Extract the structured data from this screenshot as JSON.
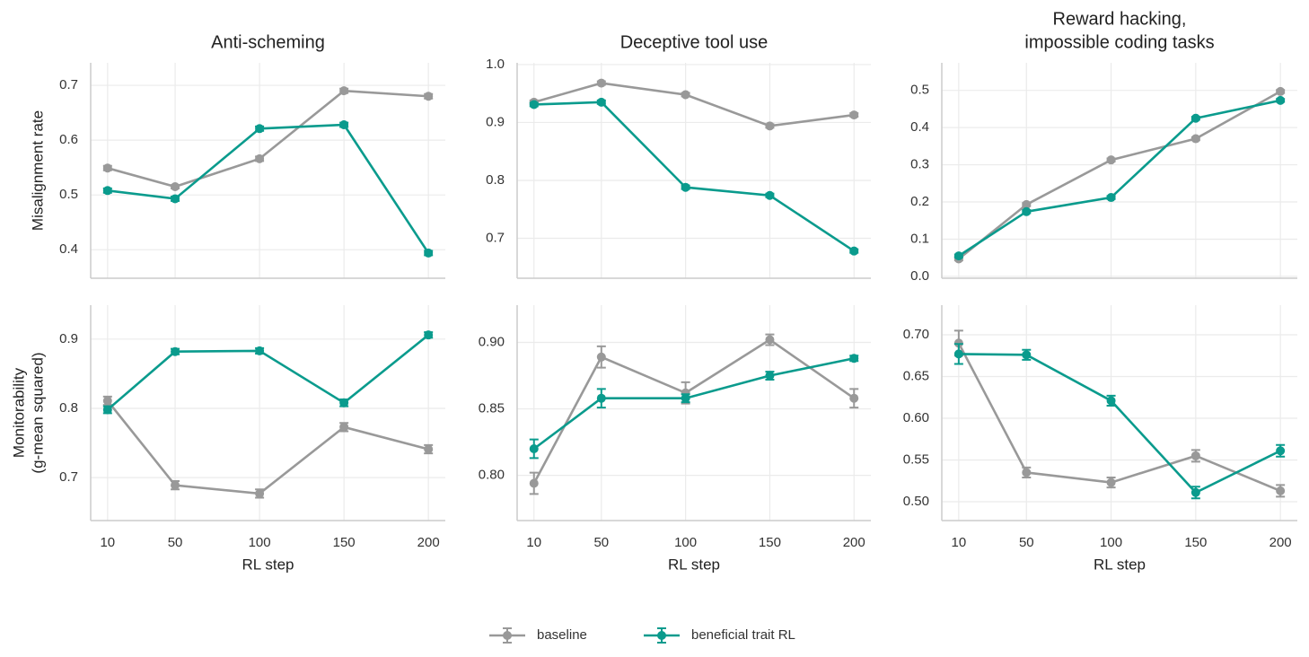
{
  "chart_data": [
    {
      "type": "line",
      "title": "Anti-scheming",
      "ylabel": [
        "Misalignment rate"
      ],
      "legend": "bottom",
      "x": [
        10,
        50,
        100,
        150,
        200
      ],
      "xlim": [
        0,
        210
      ],
      "xticks": [
        10,
        50,
        100,
        150,
        200
      ],
      "ylim": [
        0.348,
        0.741
      ],
      "yticks": [
        0.4,
        0.5,
        0.6,
        0.7
      ],
      "grid": true,
      "series": [
        {
          "name": "baseline",
          "color": "#999999",
          "values": [
            0.549,
            0.515,
            0.566,
            0.69,
            0.68
          ],
          "errors": [
            0.004,
            0.003,
            0.004,
            0.004,
            0.004
          ]
        },
        {
          "name": "beneficial trait RL",
          "color": "#0a9b8d",
          "values": [
            0.508,
            0.493,
            0.621,
            0.628,
            0.394
          ],
          "errors": [
            0.004,
            0.004,
            0.004,
            0.004,
            0.004
          ]
        }
      ]
    },
    {
      "type": "line",
      "title": "Deceptive tool use",
      "x": [
        10,
        50,
        100,
        150,
        200
      ],
      "xlim": [
        0,
        210
      ],
      "xticks": [
        10,
        50,
        100,
        150,
        200
      ],
      "ylim": [
        0.631,
        1.003
      ],
      "yticks": [
        0.7,
        0.8,
        0.9,
        {
          "value": 1,
          "label": "1.0"
        }
      ],
      "grid": true,
      "series": [
        {
          "color": "#999999",
          "values": [
            0.935,
            0.968,
            0.948,
            0.894,
            0.913
          ],
          "errors": [
            0.003,
            0.003,
            0.003,
            0.003,
            0.003
          ]
        },
        {
          "color": "#0a9b8d",
          "values": [
            0.931,
            0.935,
            0.788,
            0.774,
            0.678
          ],
          "errors": [
            0.003,
            0.003,
            0.003,
            0.003,
            0.003
          ]
        }
      ]
    },
    {
      "type": "line",
      "title": [
        "Reward hacking,",
        "impossible coding tasks"
      ],
      "x": [
        10,
        50,
        100,
        150,
        200
      ],
      "xlim": [
        0,
        210
      ],
      "xticks": [
        10,
        50,
        100,
        150,
        200
      ],
      "ylim": [
        -0.005,
        0.574
      ],
      "yticks": [
        {
          "value": 0,
          "label": "0.0"
        },
        0.1,
        0.2,
        0.3,
        0.4,
        0.5
      ],
      "grid": true,
      "series": [
        {
          "color": "#999999",
          "values": [
            0.047,
            0.193,
            0.313,
            0.37,
            0.497
          ],
          "errors": [
            0.004,
            0.004,
            0.004,
            0.004,
            0.004
          ]
        },
        {
          "color": "#0a9b8d",
          "values": [
            0.055,
            0.174,
            0.212,
            0.425,
            0.473
          ],
          "errors": [
            0.004,
            0.004,
            0.004,
            0.004,
            0.004
          ]
        }
      ]
    },
    {
      "type": "line",
      "ylabel": [
        "Monitorability",
        "(g-mean squared)"
      ],
      "xlabel": "RL step",
      "x": [
        10,
        50,
        100,
        150,
        200
      ],
      "xlim": [
        0,
        210
      ],
      "xticks": [
        10,
        50,
        100,
        150,
        200
      ],
      "ylim": [
        0.638,
        0.949
      ],
      "yticks": [
        0.7,
        0.8,
        0.9
      ],
      "grid": true,
      "series": [
        {
          "color": "#999999",
          "values": [
            0.811,
            0.689,
            0.677,
            0.773,
            0.741
          ],
          "errors": [
            0.006,
            0.006,
            0.006,
            0.006,
            0.006
          ]
        },
        {
          "color": "#0a9b8d",
          "values": [
            0.798,
            0.882,
            0.883,
            0.808,
            0.906
          ],
          "errors": [
            0.005,
            0.004,
            0.004,
            0.005,
            0.004
          ]
        }
      ]
    },
    {
      "type": "line",
      "xlabel": "RL step",
      "x": [
        10,
        50,
        100,
        150,
        200
      ],
      "xlim": [
        0,
        210
      ],
      "xticks": [
        10,
        50,
        100,
        150,
        200
      ],
      "ylim": [
        0.766,
        0.928
      ],
      "yticks": [
        {
          "value": 0.8,
          "label": "0.80"
        },
        0.85,
        {
          "value": 0.9,
          "label": "0.90"
        }
      ],
      "grid": true,
      "series": [
        {
          "color": "#999999",
          "values": [
            0.794,
            0.889,
            0.862,
            0.902,
            0.858
          ],
          "errors": [
            0.008,
            0.008,
            0.008,
            0.004,
            0.007
          ]
        },
        {
          "color": "#0a9b8d",
          "values": [
            0.82,
            0.858,
            0.858,
            0.875,
            0.888
          ],
          "errors": [
            0.007,
            0.007,
            0.003,
            0.003,
            0.002
          ]
        }
      ]
    },
    {
      "type": "line",
      "xlabel": "RL step",
      "x": [
        10,
        50,
        100,
        150,
        200
      ],
      "xlim": [
        0,
        210
      ],
      "xticks": [
        10,
        50,
        100,
        150,
        200
      ],
      "ylim": [
        0.4774,
        0.7355
      ],
      "yticks": [
        {
          "value": 0.5,
          "label": "0.50"
        },
        0.55,
        {
          "value": 0.6,
          "label": "0.60"
        },
        0.65,
        {
          "value": 0.7,
          "label": "0.70"
        }
      ],
      "grid": true,
      "series": [
        {
          "color": "#999999",
          "values": [
            0.69,
            0.535,
            0.523,
            0.555,
            0.513
          ],
          "errors": [
            0.015,
            0.006,
            0.006,
            0.007,
            0.007
          ]
        },
        {
          "color": "#0a9b8d",
          "values": [
            0.677,
            0.676,
            0.621,
            0.511,
            0.561
          ],
          "errors": [
            0.012,
            0.006,
            0.006,
            0.007,
            0.007
          ]
        }
      ]
    }
  ]
}
